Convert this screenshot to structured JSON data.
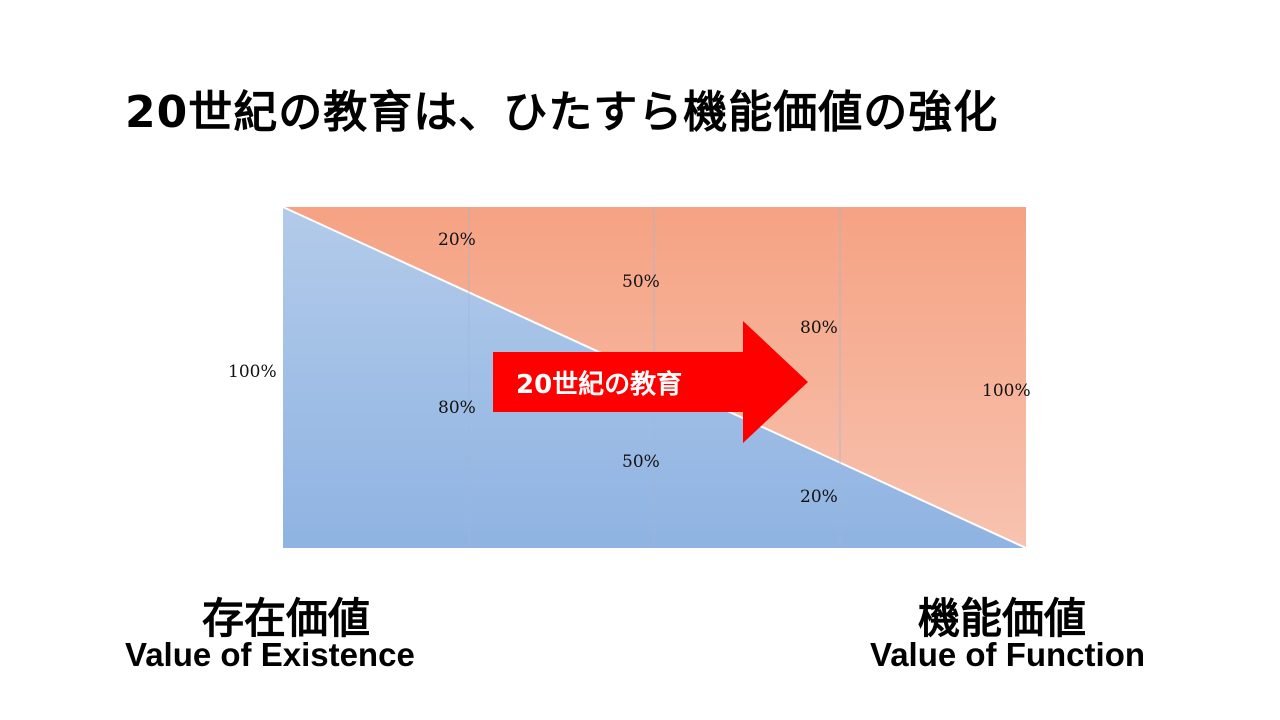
{
  "title": "20世紀の教育は、ひたすら機能価値の強化",
  "arrow_label": "20世紀の教育",
  "left_axis": {
    "jp": "存在価値",
    "en": "Value of Existence"
  },
  "right_axis": {
    "jp": "機能価値",
    "en": "Value of Function"
  },
  "labels": {
    "existence_start": "100%",
    "function_end": "100%",
    "col1_function": "20%",
    "col1_existence": "80%",
    "col2_function": "50%",
    "col2_existence": "50%",
    "col3_function": "80%",
    "col3_existence": "20%"
  },
  "colors": {
    "existence_top": "#b3cbea",
    "existence_bottom": "#8fb3e2",
    "function_top": "#f6a283",
    "function_bottom": "#f7c3b0",
    "arrow": "#ff0000"
  }
}
